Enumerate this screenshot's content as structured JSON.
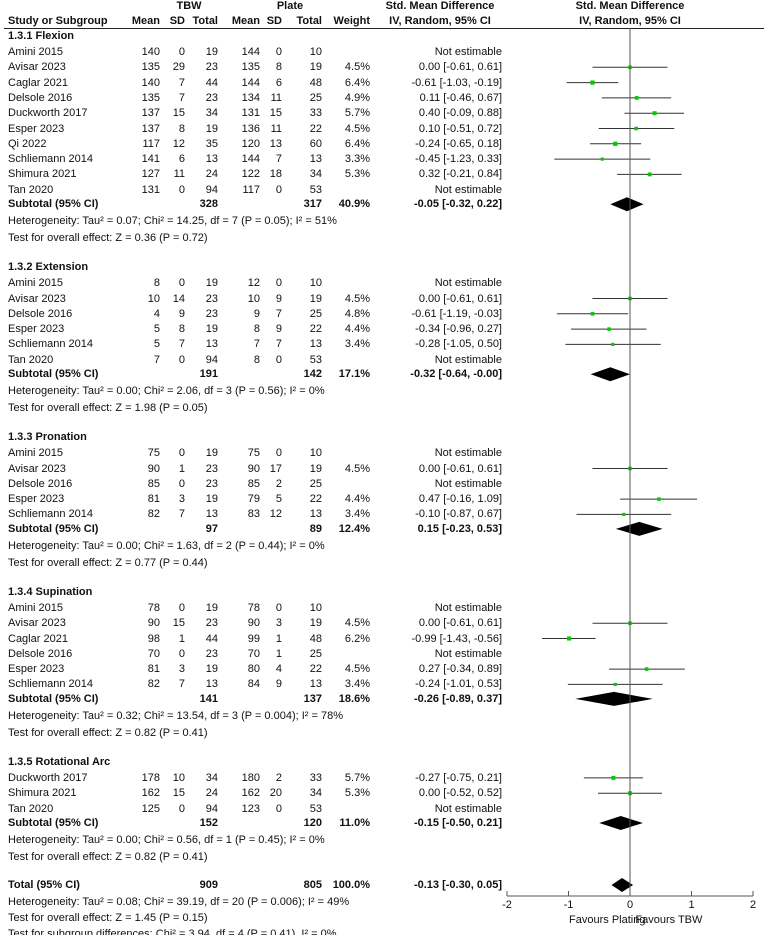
{
  "chart_data": {
    "type": "forest",
    "header": {
      "group1": "TBW",
      "group2": "Plate",
      "col_study": "Study or Subgroup",
      "col_mean": "Mean",
      "col_sd": "SD",
      "col_total": "Total",
      "col_weight": "Weight",
      "col_effect1": "Std. Mean Difference",
      "col_effect2": "IV, Random, 95% CI",
      "plot_title1": "Std. Mean Difference",
      "plot_title2": "IV, Random, 95% CI"
    },
    "xlim": [
      -2,
      2
    ],
    "xticks": [
      "-2",
      "-1",
      "0",
      "1",
      "2"
    ],
    "favours_left": "Favours Plating",
    "favours_right": "Favours TBW",
    "subgroups": [
      {
        "title": "1.3.1 Flexion",
        "studies": [
          {
            "name": "Amini 2015",
            "m1": "140",
            "sd1": "0",
            "n1": "19",
            "m2": "144",
            "sd2": "0",
            "n2": "10",
            "w": "",
            "ci": "Not estimable",
            "est": null
          },
          {
            "name": "Avisar 2023",
            "m1": "135",
            "sd1": "29",
            "n1": "23",
            "m2": "135",
            "sd2": "8",
            "n2": "19",
            "w": "4.5%",
            "ci": "0.00 [-0.61, 0.61]",
            "est": 0.0,
            "lo": -0.61,
            "hi": 0.61
          },
          {
            "name": "Caglar 2021",
            "m1": "140",
            "sd1": "7",
            "n1": "44",
            "m2": "144",
            "sd2": "6",
            "n2": "48",
            "w": "6.4%",
            "ci": "-0.61 [-1.03, -0.19]",
            "est": -0.61,
            "lo": -1.03,
            "hi": -0.19
          },
          {
            "name": "Delsole 2016",
            "m1": "135",
            "sd1": "7",
            "n1": "23",
            "m2": "134",
            "sd2": "11",
            "n2": "25",
            "w": "4.9%",
            "ci": "0.11 [-0.46, 0.67]",
            "est": 0.11,
            "lo": -0.46,
            "hi": 0.67
          },
          {
            "name": "Duckworth 2017",
            "m1": "137",
            "sd1": "15",
            "n1": "34",
            "m2": "131",
            "sd2": "15",
            "n2": "33",
            "w": "5.7%",
            "ci": "0.40 [-0.09, 0.88]",
            "est": 0.4,
            "lo": -0.09,
            "hi": 0.88
          },
          {
            "name": "Esper  2023",
            "m1": "137",
            "sd1": "8",
            "n1": "19",
            "m2": "136",
            "sd2": "11",
            "n2": "22",
            "w": "4.5%",
            "ci": "0.10 [-0.51, 0.72]",
            "est": 0.1,
            "lo": -0.51,
            "hi": 0.72
          },
          {
            "name": "Qi 2022",
            "m1": "117",
            "sd1": "12",
            "n1": "35",
            "m2": "120",
            "sd2": "13",
            "n2": "60",
            "w": "6.4%",
            "ci": "-0.24 [-0.65, 0.18]",
            "est": -0.24,
            "lo": -0.65,
            "hi": 0.18
          },
          {
            "name": "Schliemann 2014",
            "m1": "141",
            "sd1": "6",
            "n1": "13",
            "m2": "144",
            "sd2": "7",
            "n2": "13",
            "w": "3.3%",
            "ci": "-0.45 [-1.23, 0.33]",
            "est": -0.45,
            "lo": -1.23,
            "hi": 0.33
          },
          {
            "name": "Shimura 2021",
            "m1": "127",
            "sd1": "11",
            "n1": "24",
            "m2": "122",
            "sd2": "18",
            "n2": "34",
            "w": "5.3%",
            "ci": "0.32 [-0.21, 0.84]",
            "est": 0.32,
            "lo": -0.21,
            "hi": 0.84
          },
          {
            "name": "Tan 2020",
            "m1": "131",
            "sd1": "0",
            "n1": "94",
            "m2": "117",
            "sd2": "0",
            "n2": "53",
            "w": "",
            "ci": "Not estimable",
            "est": null
          }
        ],
        "subtotal": {
          "label": "Subtotal (95% CI)",
          "n1": "328",
          "n2": "317",
          "w": "40.9%",
          "ci": "-0.05 [-0.32, 0.22]",
          "est": -0.05,
          "lo": -0.32,
          "hi": 0.22
        },
        "het": "Heterogeneity: Tau² = 0.07; Chi² = 14.25, df = 7 (P = 0.05); I² = 51%",
        "test": "Test for overall effect: Z = 0.36 (P = 0.72)"
      },
      {
        "title": "1.3.2 Extension",
        "studies": [
          {
            "name": "Amini 2015",
            "m1": "8",
            "sd1": "0",
            "n1": "19",
            "m2": "12",
            "sd2": "0",
            "n2": "10",
            "w": "",
            "ci": "Not estimable",
            "est": null
          },
          {
            "name": "Avisar 2023",
            "m1": "10",
            "sd1": "14",
            "n1": "23",
            "m2": "10",
            "sd2": "9",
            "n2": "19",
            "w": "4.5%",
            "ci": "0.00 [-0.61, 0.61]",
            "est": 0.0,
            "lo": -0.61,
            "hi": 0.61
          },
          {
            "name": "Delsole 2016",
            "m1": "4",
            "sd1": "9",
            "n1": "23",
            "m2": "9",
            "sd2": "7",
            "n2": "25",
            "w": "4.8%",
            "ci": "-0.61 [-1.19, -0.03]",
            "est": -0.61,
            "lo": -1.19,
            "hi": -0.03
          },
          {
            "name": "Esper  2023",
            "m1": "5",
            "sd1": "8",
            "n1": "19",
            "m2": "8",
            "sd2": "9",
            "n2": "22",
            "w": "4.4%",
            "ci": "-0.34 [-0.96, 0.27]",
            "est": -0.34,
            "lo": -0.96,
            "hi": 0.27
          },
          {
            "name": "Schliemann 2014",
            "m1": "5",
            "sd1": "7",
            "n1": "13",
            "m2": "7",
            "sd2": "7",
            "n2": "13",
            "w": "3.4%",
            "ci": "-0.28 [-1.05, 0.50]",
            "est": -0.28,
            "lo": -1.05,
            "hi": 0.5
          },
          {
            "name": "Tan 2020",
            "m1": "7",
            "sd1": "0",
            "n1": "94",
            "m2": "8",
            "sd2": "0",
            "n2": "53",
            "w": "",
            "ci": "Not estimable",
            "est": null
          }
        ],
        "subtotal": {
          "label": "Subtotal (95% CI)",
          "n1": "191",
          "n2": "142",
          "w": "17.1%",
          "ci": "-0.32 [-0.64, -0.00]",
          "est": -0.32,
          "lo": -0.64,
          "hi": 0.0
        },
        "het": "Heterogeneity: Tau² = 0.00; Chi² = 2.06, df = 3 (P = 0.56); I² = 0%",
        "test": "Test for overall effect: Z = 1.98 (P = 0.05)"
      },
      {
        "title": "1.3.3 Pronation",
        "studies": [
          {
            "name": "Amini 2015",
            "m1": "75",
            "sd1": "0",
            "n1": "19",
            "m2": "75",
            "sd2": "0",
            "n2": "10",
            "w": "",
            "ci": "Not estimable",
            "est": null
          },
          {
            "name": "Avisar 2023",
            "m1": "90",
            "sd1": "1",
            "n1": "23",
            "m2": "90",
            "sd2": "17",
            "n2": "19",
            "w": "4.5%",
            "ci": "0.00 [-0.61, 0.61]",
            "est": 0.0,
            "lo": -0.61,
            "hi": 0.61
          },
          {
            "name": "Delsole 2016",
            "m1": "85",
            "sd1": "0",
            "n1": "23",
            "m2": "85",
            "sd2": "2",
            "n2": "25",
            "w": "",
            "ci": "Not estimable",
            "est": null
          },
          {
            "name": "Esper  2023",
            "m1": "81",
            "sd1": "3",
            "n1": "19",
            "m2": "79",
            "sd2": "5",
            "n2": "22",
            "w": "4.4%",
            "ci": "0.47 [-0.16, 1.09]",
            "est": 0.47,
            "lo": -0.16,
            "hi": 1.09
          },
          {
            "name": "Schliemann 2014",
            "m1": "82",
            "sd1": "7",
            "n1": "13",
            "m2": "83",
            "sd2": "12",
            "n2": "13",
            "w": "3.4%",
            "ci": "-0.10 [-0.87, 0.67]",
            "est": -0.1,
            "lo": -0.87,
            "hi": 0.67
          }
        ],
        "subtotal": {
          "label": "Subtotal (95% CI)",
          "n1": "97",
          "n2": "89",
          "w": "12.4%",
          "ci": "0.15 [-0.23, 0.53]",
          "est": 0.15,
          "lo": -0.23,
          "hi": 0.53
        },
        "het": "Heterogeneity: Tau² = 0.00; Chi² = 1.63, df = 2 (P = 0.44); I² = 0%",
        "test": "Test for overall effect: Z = 0.77 (P = 0.44)"
      },
      {
        "title": "1.3.4 Supination",
        "studies": [
          {
            "name": "Amini 2015",
            "m1": "78",
            "sd1": "0",
            "n1": "19",
            "m2": "78",
            "sd2": "0",
            "n2": "10",
            "w": "",
            "ci": "Not estimable",
            "est": null
          },
          {
            "name": "Avisar 2023",
            "m1": "90",
            "sd1": "15",
            "n1": "23",
            "m2": "90",
            "sd2": "3",
            "n2": "19",
            "w": "4.5%",
            "ci": "0.00 [-0.61, 0.61]",
            "est": 0.0,
            "lo": -0.61,
            "hi": 0.61
          },
          {
            "name": "Caglar 2021",
            "m1": "98",
            "sd1": "1",
            "n1": "44",
            "m2": "99",
            "sd2": "1",
            "n2": "48",
            "w": "6.2%",
            "ci": "-0.99 [-1.43, -0.56]",
            "est": -0.99,
            "lo": -1.43,
            "hi": -0.56
          },
          {
            "name": "Delsole 2016",
            "m1": "70",
            "sd1": "0",
            "n1": "23",
            "m2": "70",
            "sd2": "1",
            "n2": "25",
            "w": "",
            "ci": "Not estimable",
            "est": null
          },
          {
            "name": "Esper  2023",
            "m1": "81",
            "sd1": "3",
            "n1": "19",
            "m2": "80",
            "sd2": "4",
            "n2": "22",
            "w": "4.5%",
            "ci": "0.27 [-0.34, 0.89]",
            "est": 0.27,
            "lo": -0.34,
            "hi": 0.89
          },
          {
            "name": "Schliemann 2014",
            "m1": "82",
            "sd1": "7",
            "n1": "13",
            "m2": "84",
            "sd2": "9",
            "n2": "13",
            "w": "3.4%",
            "ci": "-0.24 [-1.01, 0.53]",
            "est": -0.24,
            "lo": -1.01,
            "hi": 0.53
          }
        ],
        "subtotal": {
          "label": "Subtotal (95% CI)",
          "n1": "141",
          "n2": "137",
          "w": "18.6%",
          "ci": "-0.26 [-0.89, 0.37]",
          "est": -0.26,
          "lo": -0.89,
          "hi": 0.37
        },
        "het": "Heterogeneity: Tau² = 0.32; Chi² = 13.54, df = 3 (P = 0.004); I² = 78%",
        "test": "Test for overall effect: Z = 0.82 (P = 0.41)"
      },
      {
        "title": "1.3.5 Rotational Arc",
        "studies": [
          {
            "name": "Duckworth 2017",
            "m1": "178",
            "sd1": "10",
            "n1": "34",
            "m2": "180",
            "sd2": "2",
            "n2": "33",
            "w": "5.7%",
            "ci": "-0.27 [-0.75, 0.21]",
            "est": -0.27,
            "lo": -0.75,
            "hi": 0.21
          },
          {
            "name": "Shimura 2021",
            "m1": "162",
            "sd1": "15",
            "n1": "24",
            "m2": "162",
            "sd2": "20",
            "n2": "34",
            "w": "5.3%",
            "ci": "0.00 [-0.52, 0.52]",
            "est": 0.0,
            "lo": -0.52,
            "hi": 0.52
          },
          {
            "name": "Tan 2020",
            "m1": "125",
            "sd1": "0",
            "n1": "94",
            "m2": "123",
            "sd2": "0",
            "n2": "53",
            "w": "",
            "ci": "Not estimable",
            "est": null
          }
        ],
        "subtotal": {
          "label": "Subtotal (95% CI)",
          "n1": "152",
          "n2": "120",
          "w": "11.0%",
          "ci": "-0.15 [-0.50, 0.21]",
          "est": -0.15,
          "lo": -0.5,
          "hi": 0.21
        },
        "het": "Heterogeneity: Tau² = 0.00; Chi² = 0.56, df = 1 (P = 0.45); I² = 0%",
        "test": "Test for overall effect: Z = 0.82 (P = 0.41)"
      }
    ],
    "total": {
      "label": "Total (95% CI)",
      "n1": "909",
      "n2": "805",
      "w": "100.0%",
      "ci": "-0.13 [-0.30, 0.05]",
      "est": -0.13,
      "lo": -0.3,
      "hi": 0.05,
      "het": "Heterogeneity: Tau² = 0.08; Chi² = 39.19, df = 20 (P = 0.006); I² = 49%",
      "test": "Test for overall effect: Z = 1.45 (P = 0.15)",
      "subgroup_test": "Test for subgroup differences: Chi² = 3.94, df = 4 (P = 0.41), I² = 0%"
    },
    "colors": {
      "square": "#00cc00",
      "line": "#333333",
      "diamond": "#000000"
    }
  }
}
